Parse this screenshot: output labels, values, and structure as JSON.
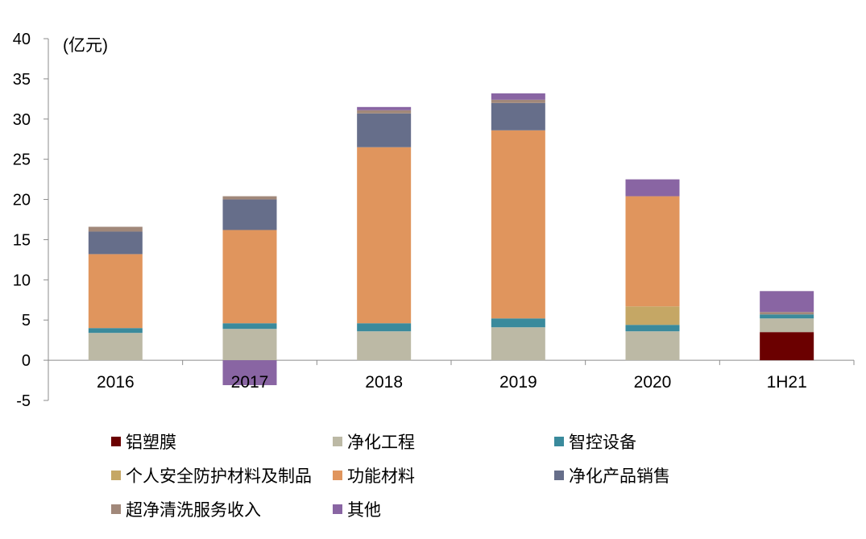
{
  "chart_data": {
    "type": "bar",
    "stacked": true,
    "unit_label": "(亿元)",
    "categories": [
      "2016",
      "2017",
      "2018",
      "2019",
      "2020",
      "1H21"
    ],
    "ylim": [
      -5,
      40
    ],
    "yticks": [
      -5,
      0,
      5,
      10,
      15,
      20,
      25,
      30,
      35,
      40
    ],
    "grid": false,
    "legend_position": "bottom",
    "series": [
      {
        "name": "铝塑膜",
        "color": "#6B0000",
        "values": [
          0,
          0,
          0,
          0,
          0,
          3.5
        ]
      },
      {
        "name": "净化工程",
        "color": "#BCB9A5",
        "values": [
          3.4,
          3.9,
          3.6,
          4.1,
          3.6,
          1.7
        ]
      },
      {
        "name": "智控设备",
        "color": "#3A8A9C",
        "values": [
          0.6,
          0.7,
          1.0,
          1.1,
          0.8,
          0.5
        ]
      },
      {
        "name": "个人安全防护材料及制品",
        "color": "#C5A765",
        "values": [
          0,
          0,
          0,
          0,
          2.3,
          0
        ]
      },
      {
        "name": "功能材料",
        "color": "#E0955D",
        "values": [
          9.2,
          11.6,
          21.9,
          23.4,
          13.7,
          0
        ]
      },
      {
        "name": "净化产品销售",
        "color": "#666E8A",
        "values": [
          2.8,
          3.8,
          4.2,
          3.4,
          0,
          0
        ]
      },
      {
        "name": "超净清洗服务收入",
        "color": "#A1887A",
        "values": [
          0.6,
          0.4,
          0.4,
          0.4,
          0,
          0.3
        ]
      },
      {
        "name": "其他",
        "color": "#8965A3",
        "values": [
          0,
          -3.1,
          0.4,
          0.8,
          2.1,
          2.6
        ]
      }
    ]
  }
}
